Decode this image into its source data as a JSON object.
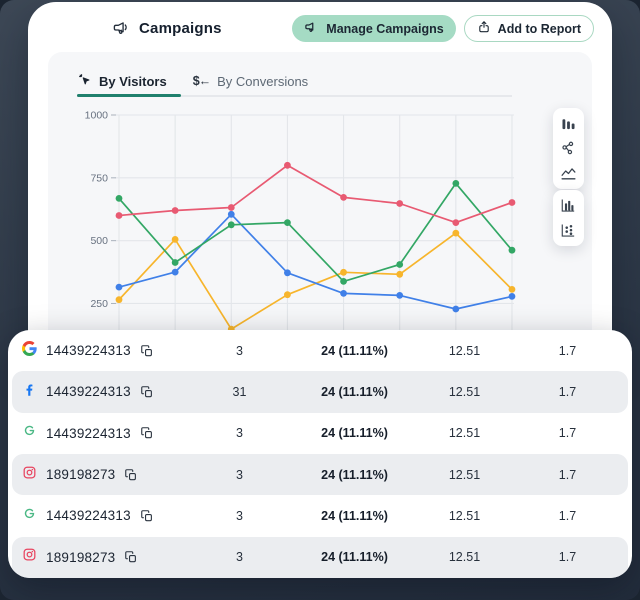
{
  "colors": {
    "background_navy": "#2d3847",
    "mint_accent": "#a5dbc4",
    "mint_border": "#a9d8c2",
    "teal_active": "#20806d",
    "panel_gray": "#f6f7f9",
    "row_stripe": "#ebedf0",
    "gridline": "#e3e6ea"
  },
  "header": {
    "title": "Campaigns",
    "manage_button": "Manage Campaigns",
    "add_button": "Add to Report"
  },
  "tabs": [
    {
      "label": "By Visitors",
      "active": true
    },
    {
      "label": "By Conversions",
      "active": false
    }
  ],
  "chart_data": {
    "type": "line",
    "title": "",
    "xlabel": "",
    "ylabel": "",
    "x": [
      1,
      2,
      3,
      4,
      5,
      6,
      7,
      8
    ],
    "yticks": [
      250,
      500,
      750,
      1000
    ],
    "ylim": [
      100,
      1000
    ],
    "grid": true,
    "legend": "none",
    "series": [
      {
        "name": "series-red",
        "color": "#e85a72",
        "values": [
          600,
          620,
          632,
          800,
          672,
          648,
          572,
          652
        ]
      },
      {
        "name": "series-green",
        "color": "#33a765",
        "values": [
          668,
          413,
          563,
          572,
          338,
          405,
          728,
          462
        ]
      },
      {
        "name": "series-blue",
        "color": "#4080e8",
        "values": [
          315,
          375,
          605,
          372,
          290,
          282,
          228,
          278
        ]
      },
      {
        "name": "series-yellow",
        "color": "#f7b52c",
        "values": [
          265,
          505,
          148,
          285,
          374,
          366,
          530,
          306
        ]
      }
    ]
  },
  "chart_tools": [
    {
      "name": "bar-chart",
      "group": 1
    },
    {
      "name": "scatter-chart",
      "group": 1
    },
    {
      "name": "line-chart",
      "group": 1,
      "selected": true
    },
    {
      "name": "column-chart",
      "group": 2
    },
    {
      "name": "dot-chart",
      "group": 2
    }
  ],
  "table": {
    "rows": [
      {
        "platform": "google",
        "id": "14439224313",
        "visitors": "3",
        "conversions": "24 (11.11%)",
        "metric1": "12.51",
        "metric2": "1.7"
      },
      {
        "platform": "facebook",
        "id": "14439224313",
        "visitors": "31",
        "conversions": "24 (11.11%)",
        "metric1": "12.51",
        "metric2": "1.7"
      },
      {
        "platform": "green-g",
        "id": "14439224313",
        "visitors": "3",
        "conversions": "24 (11.11%)",
        "metric1": "12.51",
        "metric2": "1.7"
      },
      {
        "platform": "instagram",
        "id": "189198273",
        "visitors": "3",
        "conversions": "24 (11.11%)",
        "metric1": "12.51",
        "metric2": "1.7"
      },
      {
        "platform": "green-g",
        "id": "14439224313",
        "visitors": "3",
        "conversions": "24 (11.11%)",
        "metric1": "12.51",
        "metric2": "1.7"
      },
      {
        "platform": "instagram",
        "id": "189198273",
        "visitors": "3",
        "conversions": "24 (11.11%)",
        "metric1": "12.51",
        "metric2": "1.7"
      }
    ]
  }
}
